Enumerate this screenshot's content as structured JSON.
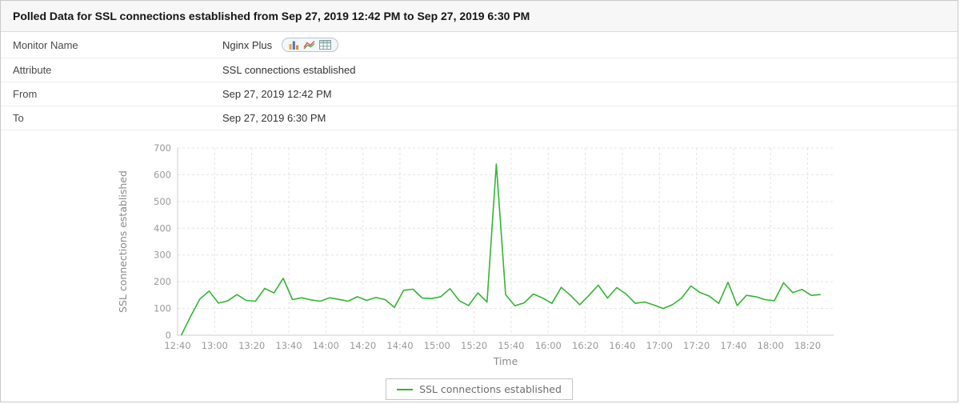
{
  "header": {
    "title": "Polled Data for SSL connections established from Sep 27, 2019 12:42 PM to Sep 27, 2019 6:30 PM"
  },
  "details": {
    "rows": [
      {
        "label": "Monitor Name",
        "value": "Nginx Plus"
      },
      {
        "label": "Attribute",
        "value": "SSL connections established"
      },
      {
        "label": "From",
        "value": "Sep 27, 2019 12:42 PM"
      },
      {
        "label": "To",
        "value": "Sep 27, 2019 6:30 PM"
      }
    ],
    "monitor_icons": [
      "bar-chart-icon",
      "line-chart-icon",
      "table-view-icon"
    ]
  },
  "chart_data": {
    "type": "line",
    "title": "",
    "xlabel": "Time",
    "ylabel": "SSL connections established",
    "ylim": [
      0,
      700
    ],
    "y_ticks": [
      0,
      100,
      200,
      300,
      400,
      500,
      600,
      700
    ],
    "x_ticks": [
      "12:40",
      "13:00",
      "13:20",
      "13:40",
      "14:00",
      "14:20",
      "14:40",
      "15:00",
      "15:20",
      "15:40",
      "16:00",
      "16:20",
      "16:40",
      "17:00",
      "17:20",
      "17:40",
      "18:00",
      "18:20"
    ],
    "grid": "dashed",
    "legend": {
      "position": "bottom",
      "entries": [
        "SSL connections established"
      ]
    },
    "series": [
      {
        "name": "SSL connections established",
        "color": "#33b533",
        "x": [
          "12:42",
          "12:47",
          "12:52",
          "12:57",
          "13:02",
          "13:07",
          "13:12",
          "13:17",
          "13:22",
          "13:27",
          "13:32",
          "13:37",
          "13:42",
          "13:47",
          "13:52",
          "13:57",
          "14:02",
          "14:07",
          "14:12",
          "14:17",
          "14:22",
          "14:27",
          "14:32",
          "14:37",
          "14:42",
          "14:47",
          "14:52",
          "14:57",
          "15:02",
          "15:07",
          "15:12",
          "15:17",
          "15:22",
          "15:27",
          "15:32",
          "15:37",
          "15:42",
          "15:47",
          "15:52",
          "15:57",
          "16:02",
          "16:07",
          "16:12",
          "16:17",
          "16:22",
          "16:27",
          "16:32",
          "16:37",
          "16:42",
          "16:47",
          "16:52",
          "16:57",
          "17:02",
          "17:07",
          "17:12",
          "17:17",
          "17:22",
          "17:27",
          "17:32",
          "17:37",
          "17:42",
          "17:47",
          "17:52",
          "17:57",
          "18:02",
          "18:07",
          "18:12",
          "18:17",
          "18:22",
          "18:27"
        ],
        "values": [
          0,
          70,
          135,
          165,
          120,
          128,
          152,
          130,
          127,
          175,
          158,
          213,
          133,
          140,
          132,
          127,
          140,
          134,
          127,
          144,
          130,
          141,
          133,
          104,
          168,
          172,
          139,
          137,
          144,
          174,
          129,
          111,
          158,
          124,
          640,
          152,
          110,
          121,
          154,
          139,
          119,
          179,
          149,
          114,
          149,
          187,
          139,
          178,
          154,
          119,
          124,
          113,
          100,
          114,
          139,
          184,
          159,
          146,
          119,
          198,
          111,
          149,
          144,
          133,
          129,
          196,
          159,
          171,
          149,
          152
        ]
      }
    ]
  }
}
